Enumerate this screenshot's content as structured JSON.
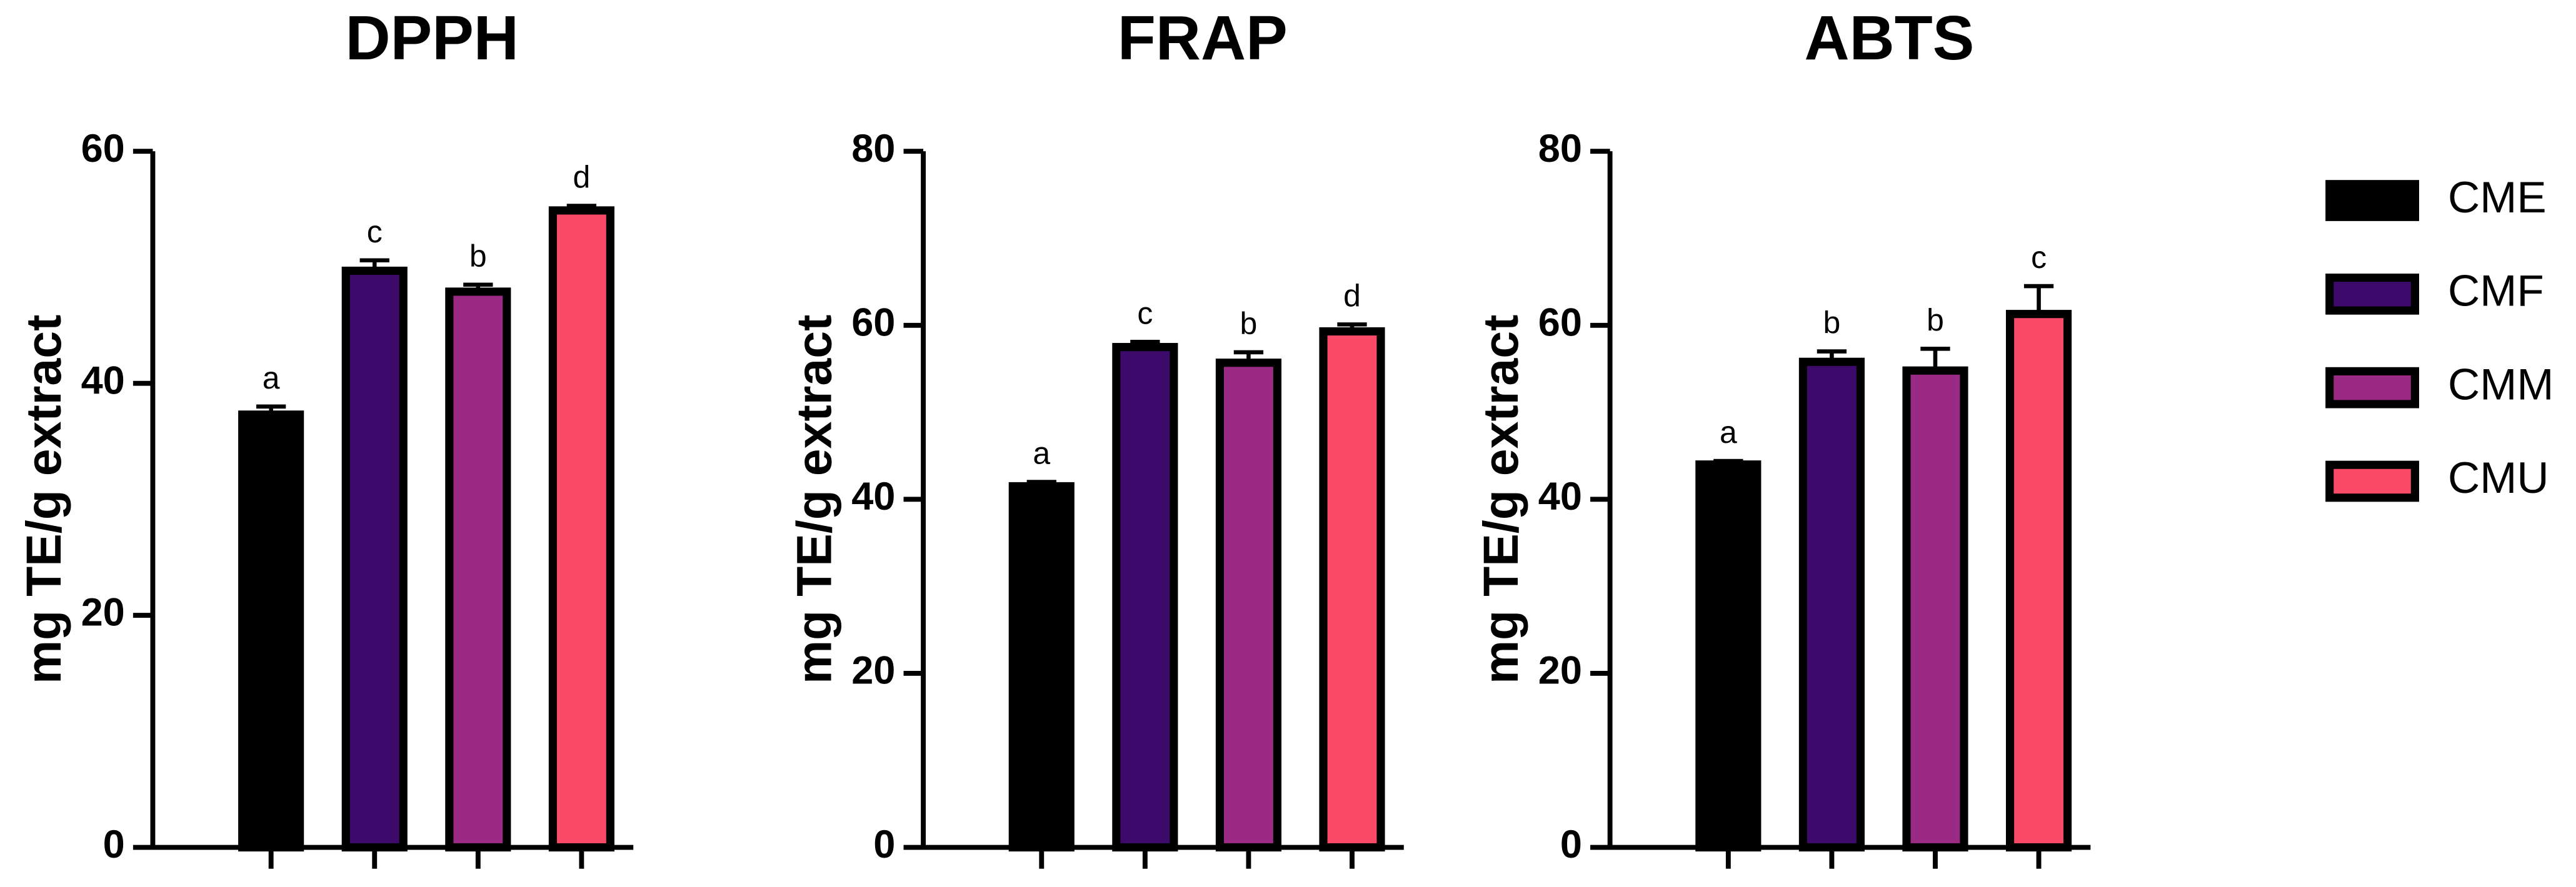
{
  "chart_data": [
    {
      "type": "bar",
      "title": "DPPH",
      "y_label": "mg TE/g extract",
      "categories": [
        null,
        null,
        null,
        null
      ],
      "values": [
        37.3,
        49.7,
        47.9,
        54.9
      ],
      "errors": [
        0.7,
        0.9,
        0.6,
        0.4
      ],
      "letters": [
        "a",
        "c",
        "b",
        "d"
      ],
      "ylim": [
        0,
        60
      ],
      "yticks": [
        0,
        20,
        40,
        60
      ]
    },
    {
      "type": "bar",
      "title": "FRAP",
      "y_label": "mg TE/g extract",
      "categories": [
        null,
        null,
        null,
        null
      ],
      "values": [
        41.5,
        57.5,
        55.7,
        59.3
      ],
      "errors": [
        0.5,
        0.6,
        1.2,
        0.8
      ],
      "letters": [
        "a",
        "c",
        "b",
        "d"
      ],
      "ylim": [
        0,
        80
      ],
      "yticks": [
        0,
        20,
        40,
        60,
        80
      ]
    },
    {
      "type": "bar",
      "title": "ABTS",
      "y_label": "mg TE/g extract",
      "categories": [
        null,
        null,
        null,
        null
      ],
      "values": [
        44.0,
        55.8,
        54.8,
        61.3
      ],
      "errors": [
        0.4,
        1.2,
        2.5,
        3.2
      ],
      "letters": [
        "a",
        "b",
        "b",
        "c"
      ],
      "ylim": [
        0,
        80
      ],
      "yticks": [
        0,
        20,
        40,
        60,
        80
      ]
    }
  ],
  "legend": {
    "position": "right",
    "items": [
      {
        "name": "CME",
        "color": "#000000"
      },
      {
        "name": "CMF",
        "color": "#3d0a6b"
      },
      {
        "name": "CMM",
        "color": "#9b2a84"
      },
      {
        "name": "CMU",
        "color": "#fa4a68"
      }
    ]
  }
}
